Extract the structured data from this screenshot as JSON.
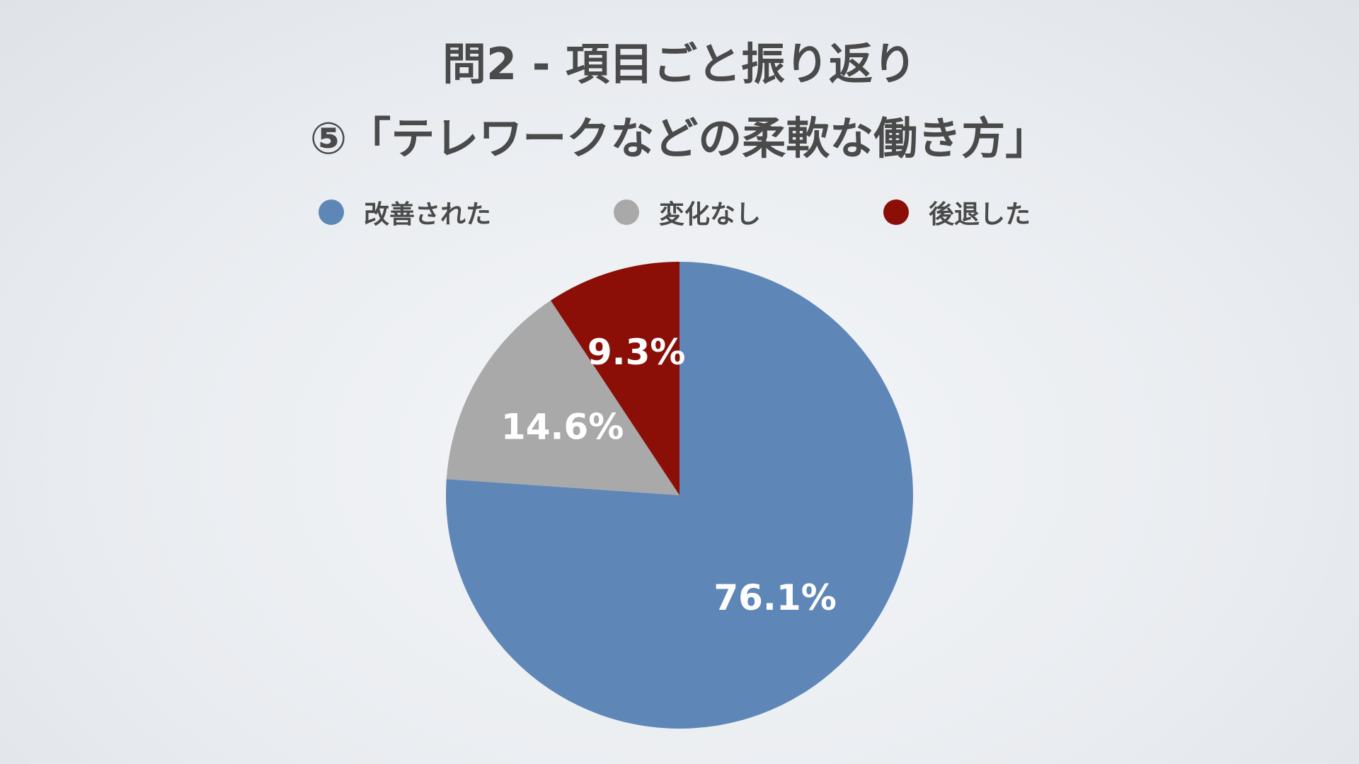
{
  "title": {
    "line1": "問2 - 項目ごと振り返り",
    "line2": "⑤「テレワークなどの柔軟な働き方」"
  },
  "chart_data": {
    "type": "pie",
    "categories": [
      "改善された",
      "変化なし",
      "後退した"
    ],
    "values": [
      76.1,
      14.6,
      9.3
    ],
    "value_labels": [
      "76.1%",
      "14.6%",
      "9.3%"
    ],
    "colors": [
      "#5e87b8",
      "#a9a9a9",
      "#8b0f06"
    ],
    "legend_placement": "top",
    "start": "12 o'clock",
    "direction": "clockwise"
  }
}
